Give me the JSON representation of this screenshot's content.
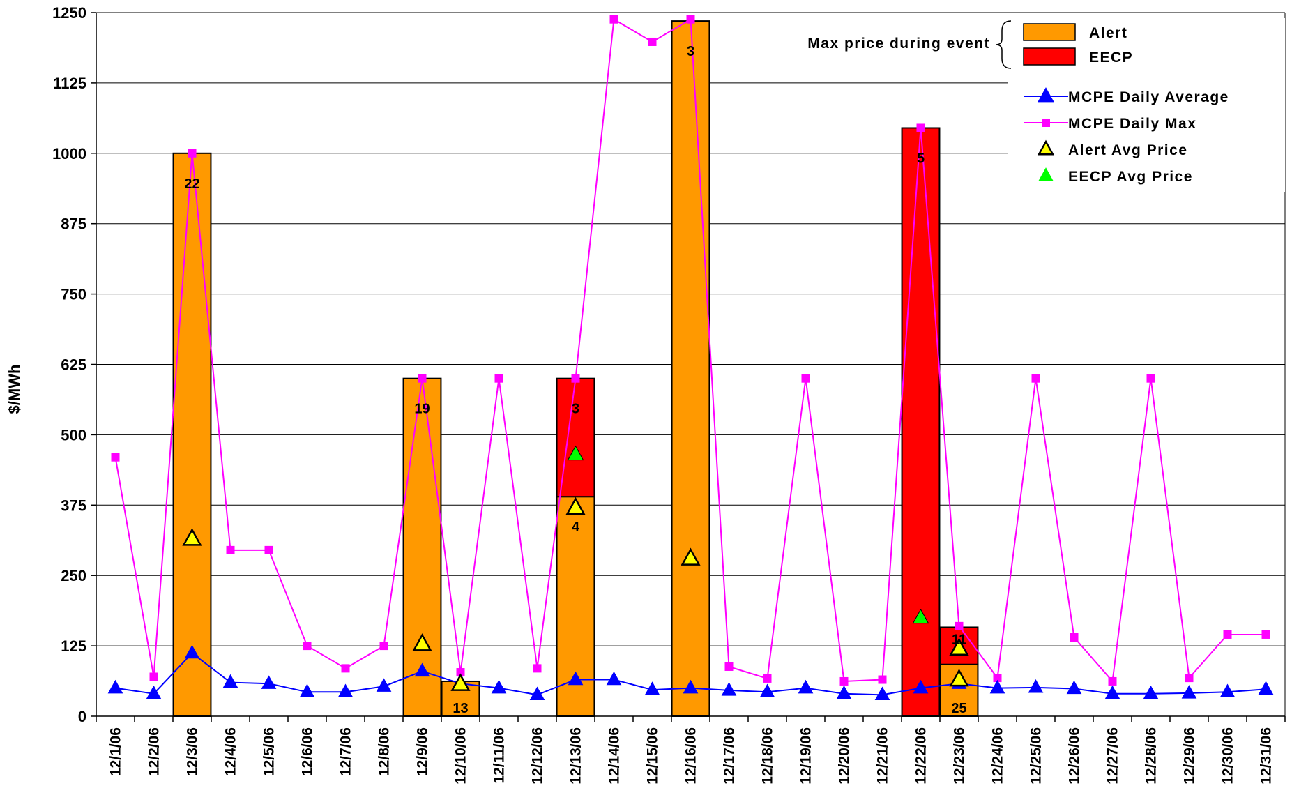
{
  "chart_data": {
    "type": "bar",
    "ylabel": "$/MWh",
    "ylim": [
      0,
      1250
    ],
    "yticks": [
      "0",
      "125",
      "250",
      "375",
      "500",
      "625",
      "750",
      "875",
      "1000",
      "1125",
      "1250"
    ],
    "grid": "horizontal",
    "categories": [
      "12/1/06",
      "12/2/06",
      "12/3/06",
      "12/4/06",
      "12/5/06",
      "12/6/06",
      "12/7/06",
      "12/8/06",
      "12/9/06",
      "12/10/06",
      "12/11/06",
      "12/12/06",
      "12/13/06",
      "12/14/06",
      "12/15/06",
      "12/16/06",
      "12/17/06",
      "12/18/06",
      "12/19/06",
      "12/20/06",
      "12/21/06",
      "12/22/06",
      "12/23/06",
      "12/24/06",
      "12/25/06",
      "12/26/06",
      "12/27/06",
      "12/28/06",
      "12/29/06",
      "12/30/06",
      "12/31/06"
    ],
    "legend": {
      "placement": "top-right",
      "bracket_label": "Max price during event",
      "bar_entries": [
        {
          "name": "Alert",
          "color": "#ff9900"
        },
        {
          "name": "EECP",
          "color": "#ff0000"
        }
      ],
      "line_entries": [
        {
          "name": "MCPE Daily Average",
          "color": "#0000ff",
          "marker": "triangle"
        },
        {
          "name": "MCPE Daily Max",
          "color": "#ff00ff",
          "marker": "square"
        },
        {
          "name": "Alert Avg Price",
          "color": "#ffff00",
          "marker": "triangle-outlined"
        },
        {
          "name": "EECP Avg Price",
          "color": "#00ff00",
          "marker": "triangle"
        }
      ]
    },
    "series": [
      {
        "name": "MCPE Daily Average",
        "color": "#0000ff",
        "values": [
          50,
          40,
          112,
          60,
          58,
          43,
          43,
          53,
          80,
          58,
          50,
          38,
          65,
          65,
          47,
          50,
          46,
          43,
          50,
          40,
          38,
          50,
          58,
          50,
          51,
          49,
          40,
          40,
          41,
          43,
          48
        ]
      },
      {
        "name": "MCPE Daily Max",
        "color": "#ff00ff",
        "values": [
          460,
          70,
          1000,
          295,
          295,
          125,
          85,
          125,
          600,
          78,
          600,
          85,
          600,
          1238,
          1198,
          1238,
          88,
          67,
          600,
          62,
          65,
          1045,
          160,
          68,
          600,
          140,
          62,
          600,
          68,
          145,
          145
        ]
      }
    ],
    "bars": [
      {
        "category": "12/3/06",
        "segments": [
          {
            "type": "Alert",
            "from": 0,
            "to": 1000,
            "count": "22"
          }
        ]
      },
      {
        "category": "12/9/06",
        "segments": [
          {
            "type": "Alert",
            "from": 0,
            "to": 600,
            "count": "19"
          }
        ]
      },
      {
        "category": "12/10/06",
        "segments": [
          {
            "type": "Alert",
            "from": 0,
            "to": 62,
            "count": "13"
          }
        ]
      },
      {
        "category": "12/13/06",
        "segments": [
          {
            "type": "Alert",
            "from": 0,
            "to": 390,
            "count": "4"
          },
          {
            "type": "EECP",
            "from": 390,
            "to": 600,
            "count": "3"
          }
        ]
      },
      {
        "category": "12/16/06",
        "segments": [
          {
            "type": "Alert",
            "from": 0,
            "to": 1235,
            "count": "3"
          }
        ]
      },
      {
        "category": "12/22/06",
        "segments": [
          {
            "type": "EECP",
            "from": 0,
            "to": 1045,
            "count": "5"
          }
        ]
      },
      {
        "category": "12/23/06",
        "segments": [
          {
            "type": "Alert",
            "from": 0,
            "to": 92,
            "count": "25"
          },
          {
            "type": "EECP",
            "from": 92,
            "to": 158,
            "count": "11"
          }
        ]
      }
    ],
    "alert_avg_price": [
      {
        "category": "12/3/06",
        "value": 315
      },
      {
        "category": "12/9/06",
        "value": 128
      },
      {
        "category": "12/10/06",
        "value": 57
      },
      {
        "category": "12/13/06",
        "value": 370
      },
      {
        "category": "12/16/06",
        "value": 280
      },
      {
        "category": "12/23/06",
        "value": 120
      },
      {
        "category": "12/23/06",
        "value": 65
      }
    ],
    "eecp_avg_price": [
      {
        "category": "12/13/06",
        "value": 465
      },
      {
        "category": "12/22/06",
        "value": 175
      }
    ]
  }
}
